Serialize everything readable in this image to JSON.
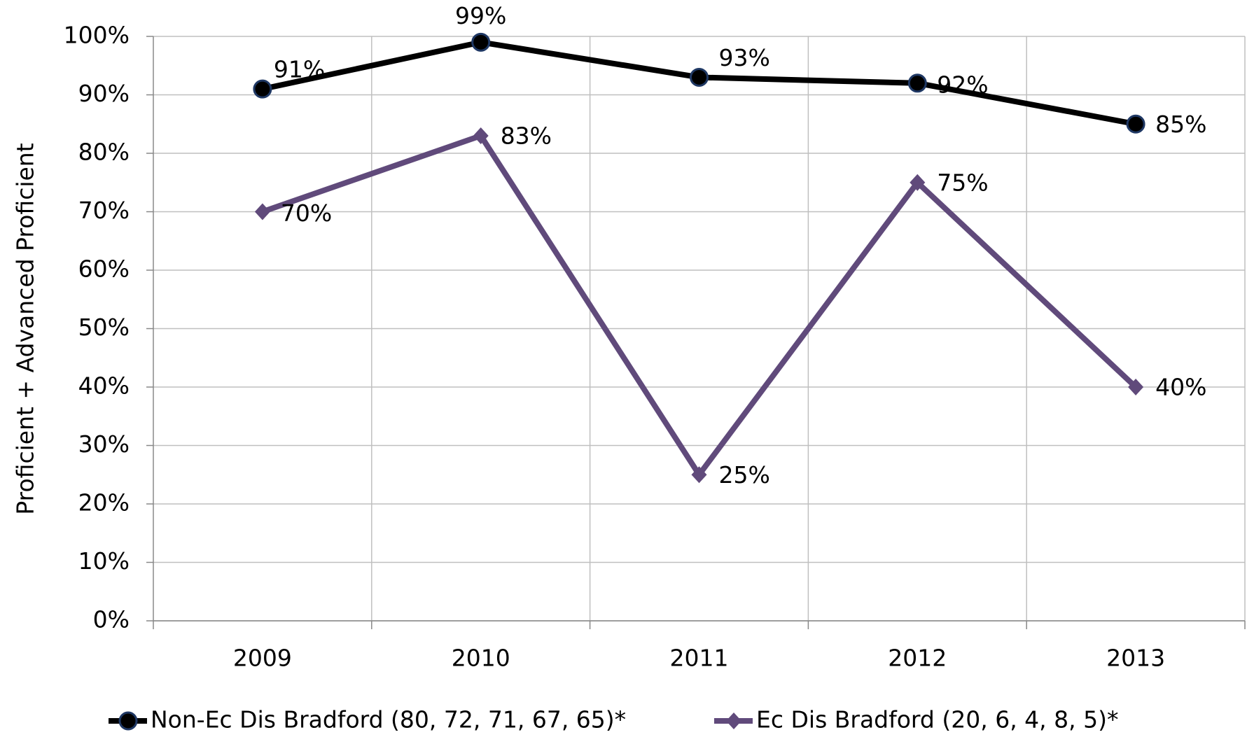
{
  "chart_data": {
    "type": "line",
    "y_axis_label": "Proficient + Advanced Proficient",
    "categories": [
      "2009",
      "2010",
      "2011",
      "2012",
      "2013"
    ],
    "series": [
      {
        "name": "Non-Ec Dis Bradford (80, 72, 71, 67, 65)*",
        "color": "#000000",
        "marker": "circle",
        "values": [
          91,
          99,
          93,
          92,
          85
        ],
        "value_labels": [
          "91%",
          "99%",
          "93%",
          "92%",
          "85%"
        ]
      },
      {
        "name": "Ec Dis Bradford (20, 6, 4, 8, 5)*",
        "color": "#604a7b",
        "marker": "diamond",
        "values": [
          70,
          83,
          25,
          75,
          40
        ],
        "value_labels": [
          "70%",
          "83%",
          "25%",
          "75%",
          "40%"
        ]
      }
    ],
    "ylim": [
      0,
      100
    ],
    "yticks": [
      {
        "value": 0,
        "label": "0%"
      },
      {
        "value": 10,
        "label": "10%"
      },
      {
        "value": 20,
        "label": "20%"
      },
      {
        "value": 30,
        "label": "30%"
      },
      {
        "value": 40,
        "label": "40%"
      },
      {
        "value": 50,
        "label": "50%"
      },
      {
        "value": 60,
        "label": "60%"
      },
      {
        "value": 70,
        "label": "70%"
      },
      {
        "value": 80,
        "label": "80%"
      },
      {
        "value": 90,
        "label": "90%"
      },
      {
        "value": 100,
        "label": "100%"
      }
    ],
    "grid": true,
    "legend": "bottom"
  }
}
